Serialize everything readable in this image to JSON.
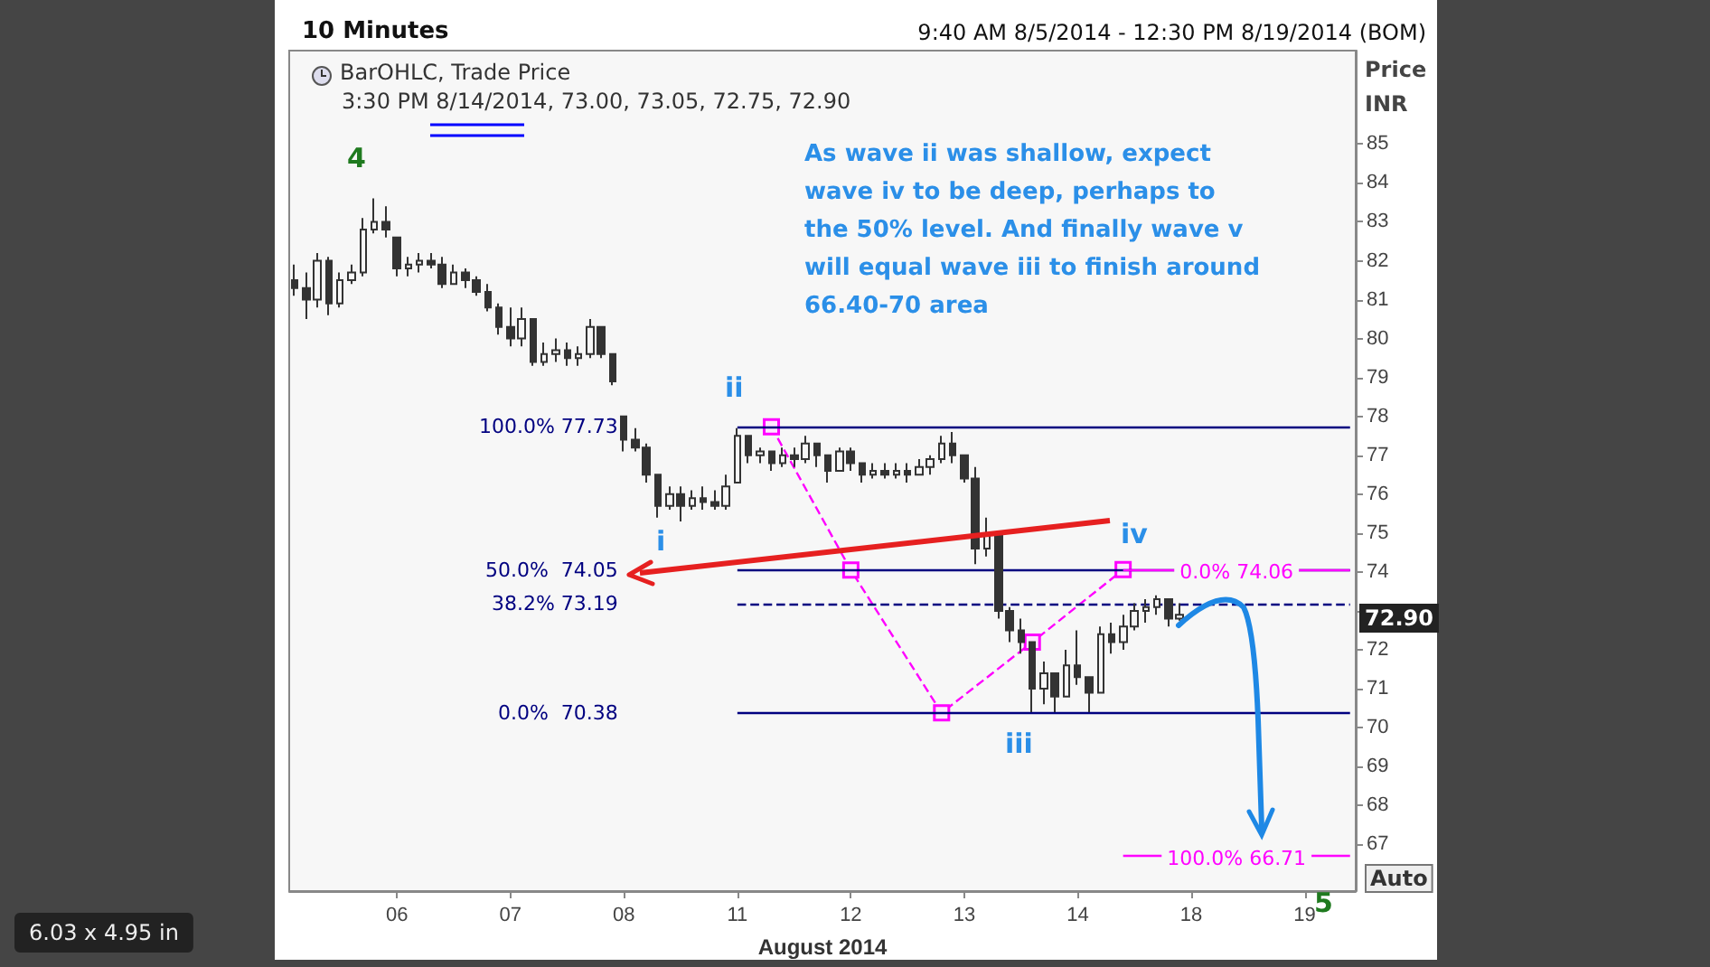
{
  "chart_data": {
    "type": "candlestick",
    "title": "10 Minutes",
    "subtitle": "9:40 AM 8/5/2014 - 12:30 PM 8/19/2014 (BOM)",
    "xlabel": "August 2014",
    "ylabel": "Price\nINR",
    "color": "#333333",
    "categories": [
      null,
      null,
      null,
      null,
      null,
      null,
      null,
      null,
      null,
      "06",
      null,
      null,
      null,
      null,
      null,
      null,
      null,
      null,
      null,
      "07",
      null,
      null,
      null,
      null,
      null,
      null,
      null,
      null,
      null,
      "08",
      null,
      null,
      null,
      null,
      null,
      null,
      null,
      null,
      null,
      "11",
      null,
      null,
      null,
      null,
      null,
      null,
      null,
      null,
      null,
      "12",
      null,
      null,
      null,
      null,
      null,
      null,
      null,
      null,
      null,
      "13",
      null,
      null,
      null,
      null,
      null,
      null,
      null,
      null,
      null,
      "14",
      null,
      null,
      null,
      null,
      null,
      null,
      null,
      null,
      null,
      "18",
      null,
      null,
      null,
      null,
      null,
      null,
      null,
      null,
      null,
      "19",
      null,
      null,
      null,
      null
    ],
    "ohlc": [
      [
        81.5,
        81.9,
        81.1,
        81.3
      ],
      [
        81.3,
        81.7,
        80.5,
        81.0
      ],
      [
        81.0,
        82.2,
        80.8,
        82.0
      ],
      [
        82.0,
        82.1,
        80.6,
        80.9
      ],
      [
        80.9,
        81.7,
        80.8,
        81.5
      ],
      [
        81.5,
        81.9,
        81.4,
        81.7
      ],
      [
        81.7,
        83.1,
        81.6,
        82.8
      ],
      [
        82.8,
        83.6,
        82.7,
        83.0
      ],
      [
        83.0,
        83.4,
        82.6,
        82.8
      ],
      [
        82.6,
        82.6,
        81.6,
        81.8
      ],
      [
        81.8,
        82.1,
        81.6,
        81.9
      ],
      [
        81.9,
        82.2,
        81.7,
        82.0
      ],
      [
        82.0,
        82.2,
        81.8,
        81.9
      ],
      [
        81.9,
        82.1,
        81.3,
        81.4
      ],
      [
        81.4,
        81.9,
        81.4,
        81.7
      ],
      [
        81.7,
        81.8,
        81.3,
        81.5
      ],
      [
        81.5,
        81.6,
        81.1,
        81.2
      ],
      [
        81.2,
        81.4,
        80.7,
        80.8
      ],
      [
        80.8,
        80.9,
        80.1,
        80.3
      ],
      [
        80.3,
        80.8,
        79.8,
        80.0
      ],
      [
        80.0,
        80.8,
        79.8,
        80.5
      ],
      [
        80.5,
        80.5,
        79.3,
        79.4
      ],
      [
        79.4,
        79.9,
        79.3,
        79.6
      ],
      [
        79.6,
        80.0,
        79.4,
        79.7
      ],
      [
        79.7,
        79.9,
        79.3,
        79.5
      ],
      [
        79.5,
        79.8,
        79.3,
        79.6
      ],
      [
        79.6,
        80.5,
        79.5,
        80.3
      ],
      [
        80.3,
        80.3,
        79.5,
        79.6
      ],
      [
        79.6,
        79.6,
        78.8,
        78.9
      ],
      [
        78.0,
        78.0,
        77.1,
        77.4
      ],
      [
        77.4,
        77.7,
        77.1,
        77.2
      ],
      [
        77.2,
        77.3,
        76.3,
        76.5
      ],
      [
        76.5,
        76.5,
        75.4,
        75.7
      ],
      [
        75.7,
        76.2,
        75.6,
        76.0
      ],
      [
        76.0,
        76.2,
        75.3,
        75.7
      ],
      [
        75.7,
        76.1,
        75.6,
        75.9
      ],
      [
        75.9,
        76.2,
        75.6,
        75.8
      ],
      [
        75.8,
        76.1,
        75.6,
        75.7
      ],
      [
        75.7,
        76.5,
        75.6,
        76.2
      ],
      [
        76.3,
        77.7,
        76.3,
        77.5
      ],
      [
        77.5,
        77.5,
        76.8,
        77.0
      ],
      [
        77.0,
        77.2,
        76.8,
        77.1
      ],
      [
        77.1,
        77.1,
        76.6,
        76.8
      ],
      [
        76.8,
        77.2,
        76.7,
        77.0
      ],
      [
        77.0,
        77.2,
        76.7,
        76.9
      ],
      [
        76.9,
        77.5,
        76.8,
        77.3
      ],
      [
        77.3,
        77.3,
        76.7,
        77.0
      ],
      [
        77.0,
        77.0,
        76.3,
        76.6
      ],
      [
        76.6,
        77.2,
        76.6,
        77.1
      ],
      [
        77.1,
        77.2,
        76.6,
        76.8
      ],
      [
        76.8,
        76.8,
        76.3,
        76.5
      ],
      [
        76.5,
        76.8,
        76.4,
        76.6
      ],
      [
        76.6,
        76.8,
        76.4,
        76.5
      ],
      [
        76.5,
        76.8,
        76.4,
        76.6
      ],
      [
        76.6,
        76.8,
        76.3,
        76.5
      ],
      [
        76.5,
        76.9,
        76.5,
        76.7
      ],
      [
        76.7,
        77.0,
        76.5,
        76.9
      ],
      [
        76.9,
        77.5,
        76.8,
        77.3
      ],
      [
        77.3,
        77.6,
        76.8,
        77.0
      ],
      [
        77.0,
        77.0,
        76.3,
        76.4
      ],
      [
        76.4,
        76.7,
        74.2,
        74.6
      ],
      [
        74.6,
        75.4,
        74.4,
        75.0
      ],
      [
        75.0,
        75.0,
        72.8,
        73.0
      ],
      [
        73.0,
        73.1,
        72.2,
        72.5
      ],
      [
        72.5,
        72.8,
        71.9,
        72.2
      ],
      [
        72.2,
        72.2,
        70.4,
        71.0
      ],
      [
        71.0,
        71.7,
        70.6,
        71.4
      ],
      [
        71.4,
        71.4,
        70.4,
        70.8
      ],
      [
        70.8,
        72.0,
        70.8,
        71.6
      ],
      [
        71.6,
        72.5,
        71.1,
        71.3
      ],
      [
        71.3,
        71.3,
        70.4,
        70.9
      ],
      [
        70.9,
        72.6,
        70.9,
        72.4
      ],
      [
        72.4,
        72.7,
        71.9,
        72.2
      ],
      [
        72.2,
        72.9,
        72.0,
        72.6
      ],
      [
        72.6,
        73.2,
        72.5,
        73.0
      ],
      [
        73.0,
        73.3,
        72.7,
        73.1
      ],
      [
        73.1,
        73.4,
        72.9,
        73.3
      ],
      [
        73.3,
        73.3,
        72.6,
        72.8
      ],
      [
        72.8,
        73.2,
        72.75,
        72.9
      ],
      null,
      null,
      null,
      null,
      null,
      null,
      null,
      null,
      null,
      null,
      null,
      null,
      null,
      null,
      null
    ],
    "series": [
      {
        "type": "line",
        "color": "#ff00ff",
        "line_style": "dashed",
        "marker": "square",
        "values": [
          null,
          null,
          null,
          null,
          null,
          null,
          null,
          null,
          null,
          null,
          null,
          null,
          null,
          null,
          null,
          null,
          null,
          null,
          null,
          null,
          null,
          null,
          null,
          null,
          null,
          null,
          null,
          null,
          null,
          null,
          null,
          null,
          null,
          null,
          null,
          null,
          null,
          null,
          null,
          null,
          null,
          null,
          77.73,
          null,
          null,
          null,
          null,
          null,
          null,
          74.05,
          null,
          null,
          null,
          null,
          null,
          null,
          null,
          70.38,
          null,
          null,
          null,
          null,
          null,
          null,
          null,
          72.2,
          null,
          null,
          null,
          null,
          null,
          null,
          null,
          74.06,
          null,
          null,
          null,
          null,
          null,
          null,
          null,
          null,
          null,
          null,
          null,
          null,
          null,
          null,
          null,
          null,
          null,
          null,
          null,
          null
        ]
      }
    ],
    "ylim": [
      65.8,
      87.4
    ],
    "yticks": [
      67,
      68,
      69,
      70,
      71,
      72,
      {
        "value": 73,
        "label": null
      },
      74,
      75,
      76,
      77,
      78,
      79,
      80,
      81,
      82,
      83,
      84,
      85
    ],
    "ref_lines": [
      {
        "axis": "y",
        "value": 77.73,
        "label": "100.0% 77.73",
        "color": "#000080"
      },
      {
        "axis": "y",
        "value": 74.05,
        "label": "50.0%  74.05",
        "color": "#000080"
      },
      {
        "axis": "y",
        "value": 73.19,
        "label": "38.2% 73.19",
        "color": "#000080",
        "line_style": "dashed"
      },
      {
        "axis": "y",
        "value": 70.38,
        "label": "0.0%  70.38",
        "color": "#000080"
      },
      {
        "axis": "y",
        "value": 74.06,
        "label": "0.0% 74.06",
        "color": "#ff00ff"
      },
      {
        "axis": "y",
        "value": 66.71,
        "label": "100.0% 66.71",
        "color": "#ff00ff"
      }
    ],
    "annotations": [
      "BarOHLC, Trade Price",
      "3:30 PM 8/14/2014, 73.00, 73.05, 72.75, 72.90",
      "As wave ii was shallow, expect\nwave iv to be deep, perhaps to\nthe 50% level. And finally wave v\nwill equal wave iii to finish around\n66.40-70 area",
      "Auto",
      "6.03 x 4.95 in",
      "4",
      "ii",
      "i",
      "iii",
      "iv",
      "5",
      "72.90"
    ]
  }
}
